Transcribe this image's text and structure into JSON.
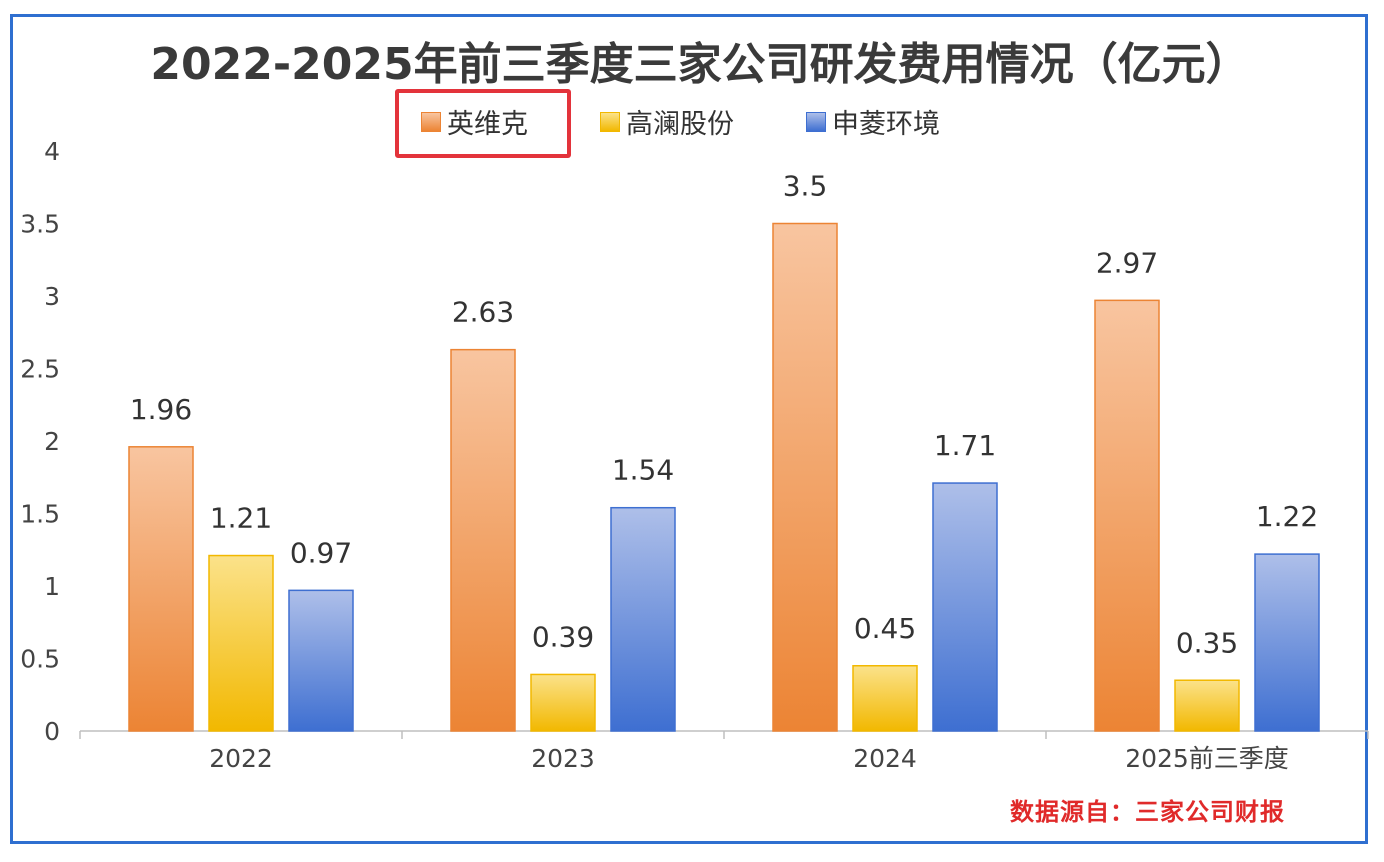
{
  "chart_data": {
    "type": "bar",
    "title": "2022-2025年前三季度三家公司研发费用情况（亿元）",
    "categories": [
      "2022",
      "2023",
      "2024",
      "2025前三季度"
    ],
    "series": [
      {
        "name": "英维克",
        "values": [
          1.96,
          2.63,
          3.5,
          2.97
        ],
        "color": "#ec8434",
        "color_light": "#f8c5a0"
      },
      {
        "name": "高澜股份",
        "values": [
          1.21,
          0.39,
          0.45,
          0.35
        ],
        "color": "#f2b800",
        "color_light": "#fbe28a"
      },
      {
        "name": "申菱环境",
        "values": [
          0.97,
          1.54,
          1.71,
          1.22
        ],
        "color": "#3e6fd1",
        "color_light": "#aebfe9"
      }
    ],
    "data_labels": [
      [
        "1.96",
        "2.63",
        "3.5",
        "2.97"
      ],
      [
        "1.21",
        "0.39",
        "0.45",
        "0.35"
      ],
      [
        "0.97",
        "1.54",
        "1.71",
        "1.22"
      ]
    ],
    "ylim": [
      0,
      4
    ],
    "yticks": [
      "0",
      "0.5",
      "1",
      "1.5",
      "2",
      "2.5",
      "3",
      "3.5",
      "4"
    ],
    "ytick_values": [
      0,
      0.5,
      1,
      1.5,
      2,
      2.5,
      3,
      3.5,
      4
    ],
    "grid": false,
    "legend_position": "top-center",
    "highlighted_legend": "英维克",
    "source": "数据源自：三家公司财报"
  },
  "colors": {
    "frame": "#2f6fd0",
    "highlight": "#e3333b",
    "source_text": "#e02a2a"
  }
}
